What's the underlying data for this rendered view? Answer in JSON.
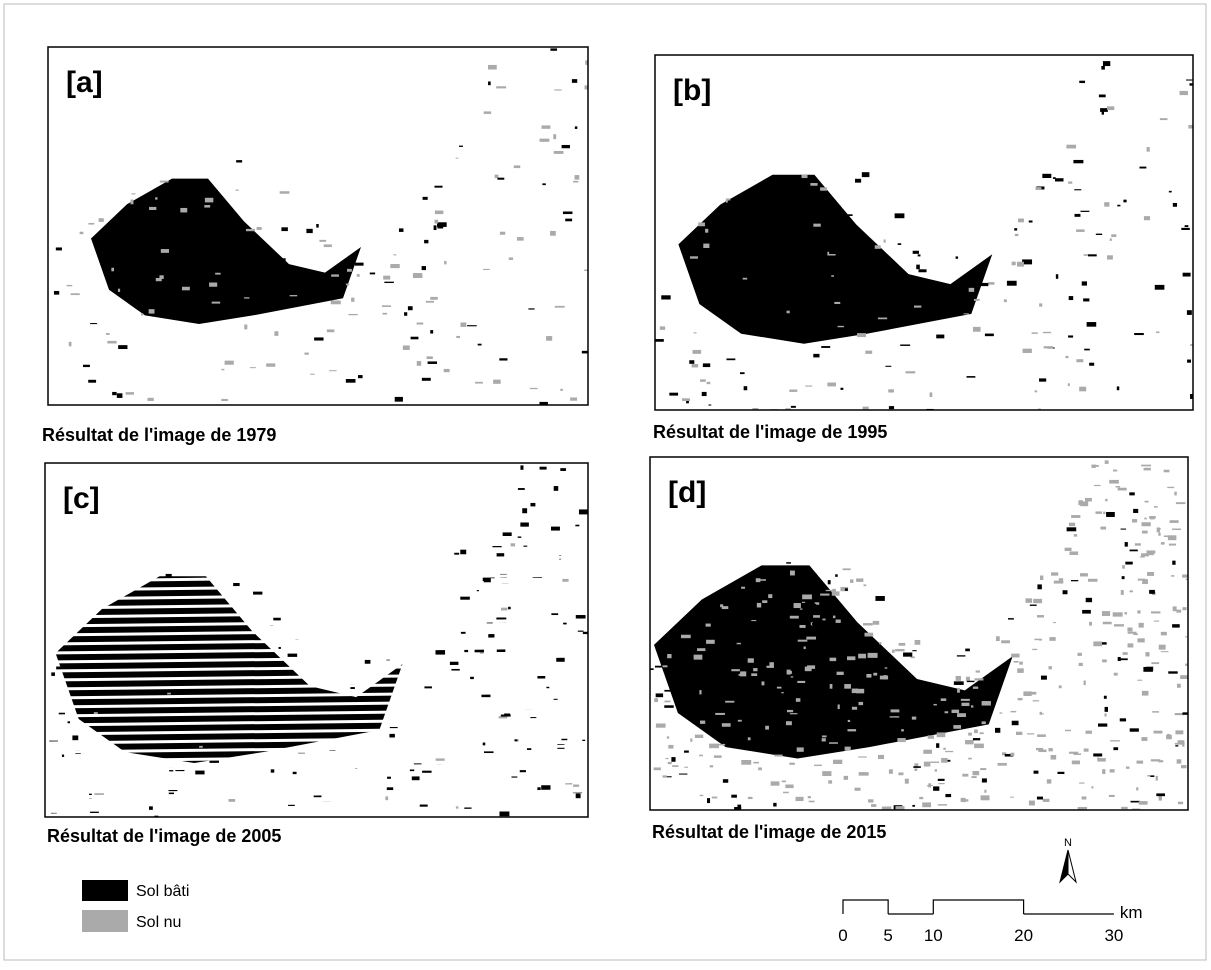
{
  "panels": [
    {
      "label": "[a]",
      "caption": "Résultat de l'image de 1979"
    },
    {
      "label": "[b]",
      "caption": "Résultat de l'image de 1995"
    },
    {
      "label": "[c]",
      "caption": "Résultat de l'image de 2005"
    },
    {
      "label": "[d]",
      "caption": "Résultat de l'image de 2015"
    }
  ],
  "legend": [
    {
      "label": "Sol bâti"
    },
    {
      "label": "Sol nu"
    }
  ],
  "scale_bar": {
    "ticks": [
      0,
      5,
      10,
      20,
      30
    ],
    "unit": "km"
  },
  "north": "N"
}
